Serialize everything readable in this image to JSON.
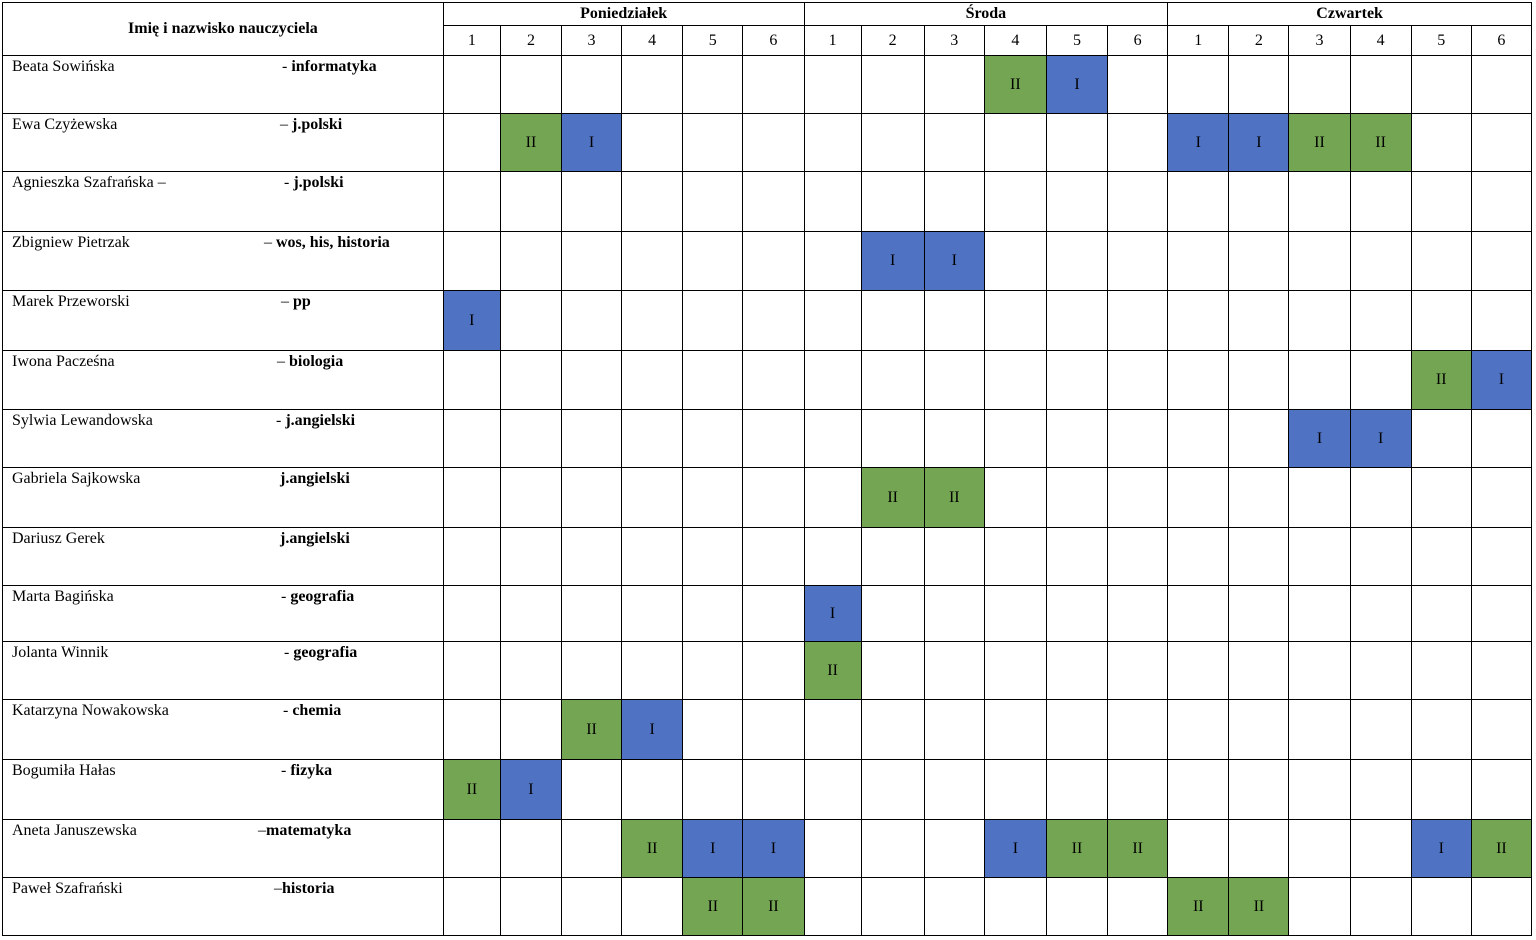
{
  "header": {
    "name_col": "Imię i nazwisko nauczyciela",
    "days": [
      "Poniedziałek",
      "Środa",
      "Czwartek"
    ],
    "periods": [
      "1",
      "2",
      "3",
      "4",
      "5",
      "6"
    ]
  },
  "colors": {
    "I": "#4f72c3",
    "II": "#74a552"
  },
  "teachers": [
    {
      "name": "Beata Sowińska",
      "sep": "- ",
      "subject": "informatyka",
      "slots": [
        "",
        "",
        "",
        "",
        "",
        "",
        "",
        "",
        "",
        "II",
        "I",
        "",
        "",
        "",
        "",
        "",
        "",
        ""
      ]
    },
    {
      "name": "Ewa Czyżewska",
      "sep": "– ",
      "subject": "j.polski",
      "slots": [
        "",
        "II",
        "I",
        "",
        "",
        "",
        "",
        "",
        "",
        "",
        "",
        "",
        "I",
        "I",
        "II",
        "II",
        "",
        ""
      ]
    },
    {
      "name": "Agnieszka Szafrańska –",
      "sep": "- ",
      "subject": "j.polski",
      "slots": [
        "",
        "",
        "",
        "",
        "",
        "",
        "",
        "",
        "",
        "",
        "",
        "",
        "",
        "",
        "",
        "",
        "",
        ""
      ]
    },
    {
      "name": "Zbigniew Pietrzak",
      "sep": "– ",
      "subject": "wos, his, historia",
      "slots": [
        "",
        "",
        "",
        "",
        "",
        "",
        "",
        "I",
        "I",
        "",
        "",
        "",
        "",
        "",
        "",
        "",
        "",
        ""
      ]
    },
    {
      "name": "Marek Przeworski",
      "sep": "– ",
      "subject": "pp",
      "slots": [
        "I",
        "",
        "",
        "",
        "",
        "",
        "",
        "",
        "",
        "",
        "",
        "",
        "",
        "",
        "",
        "",
        "",
        ""
      ]
    },
    {
      "name": "Iwona Pacześna",
      "sep": "– ",
      "subject": "biologia",
      "slots": [
        "",
        "",
        "",
        "",
        "",
        "",
        "",
        "",
        "",
        "",
        "",
        "",
        "",
        "",
        "",
        "",
        "II",
        "I"
      ]
    },
    {
      "name": "Sylwia Lewandowska",
      "sep": "- ",
      "subject": "j.angielski",
      "slots": [
        "",
        "",
        "",
        "",
        "",
        "",
        "",
        "",
        "",
        "",
        "",
        "",
        "",
        "",
        "I",
        "I",
        "",
        ""
      ]
    },
    {
      "name": "Gabriela Sajkowska",
      "sep": "",
      "subject": "j.angielski",
      "slots": [
        "",
        "",
        "",
        "",
        "",
        "",
        "",
        "II",
        "II",
        "",
        "",
        "",
        "",
        "",
        "",
        "",
        "",
        ""
      ]
    },
    {
      "name": "Dariusz Gerek",
      "sep": "",
      "subject": "j.angielski",
      "slots": [
        "",
        "",
        "",
        "",
        "",
        "",
        "",
        "",
        "",
        "",
        "",
        "",
        "",
        "",
        "",
        "",
        "",
        ""
      ]
    },
    {
      "name": "Marta Bagińska",
      "sep": "- ",
      "subject": "geografia",
      "slots": [
        "",
        "",
        "",
        "",
        "",
        "",
        "I",
        "",
        "",
        "",
        "",
        "",
        "",
        "",
        "",
        "",
        "",
        ""
      ]
    },
    {
      "name": "Jolanta Winnik",
      "sep": "- ",
      "subject": "geografia",
      "slots": [
        "",
        "",
        "",
        "",
        "",
        "",
        "II",
        "",
        "",
        "",
        "",
        "",
        "",
        "",
        "",
        "",
        "",
        ""
      ]
    },
    {
      "name": "Katarzyna Nowakowska",
      "sep": "- ",
      "subject": "chemia",
      "slots": [
        "",
        "",
        "II",
        "I",
        "",
        "",
        "",
        "",
        "",
        "",
        "",
        "",
        "",
        "",
        "",
        "",
        "",
        ""
      ]
    },
    {
      "name": "Bogumiła Hałas",
      "sep": "- ",
      "subject": "fizyka",
      "slots": [
        "II",
        "I",
        "",
        "",
        "",
        "",
        "",
        "",
        "",
        "",
        "",
        "",
        "",
        "",
        "",
        "",
        "",
        ""
      ]
    },
    {
      "name": "Aneta Januszewska",
      "sep": "–",
      "subject": "matematyka",
      "slots": [
        "",
        "",
        "",
        "II",
        "I",
        "I",
        "",
        "",
        "",
        "I",
        "II",
        "II",
        "",
        "",
        "",
        "",
        "I",
        "II"
      ]
    },
    {
      "name": "Paweł Szafrański",
      "sep": "–",
      "subject": "historia",
      "slots": [
        "",
        "",
        "",
        "",
        "II",
        "II",
        "",
        "",
        "",
        "",
        "",
        "",
        "II",
        "II",
        "",
        "",
        "",
        ""
      ]
    }
  ]
}
